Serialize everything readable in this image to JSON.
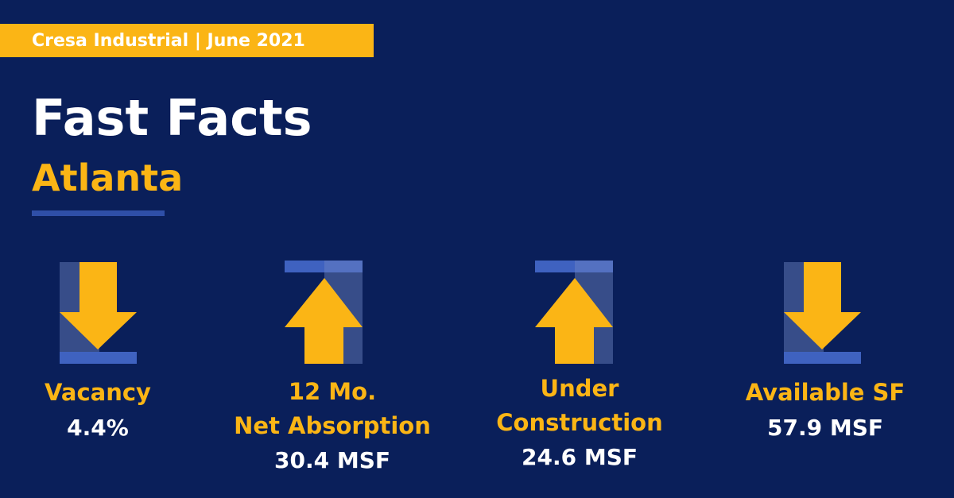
{
  "header": {
    "badge": "Cresa Industrial | June 2021",
    "title": "Fast Facts",
    "subtitle": "Atlanta"
  },
  "facts": [
    {
      "label": [
        "Vacancy"
      ],
      "value": "4.4%"
    },
    {
      "label": [
        "12 Mo.",
        "Net Absorption"
      ],
      "value": "30.4 MSF"
    },
    {
      "label": [
        "Under",
        "Construction"
      ],
      "value": "24.6 MSF"
    },
    {
      "label": [
        "Available SF"
      ],
      "value": "57.9 MSF"
    }
  ]
}
